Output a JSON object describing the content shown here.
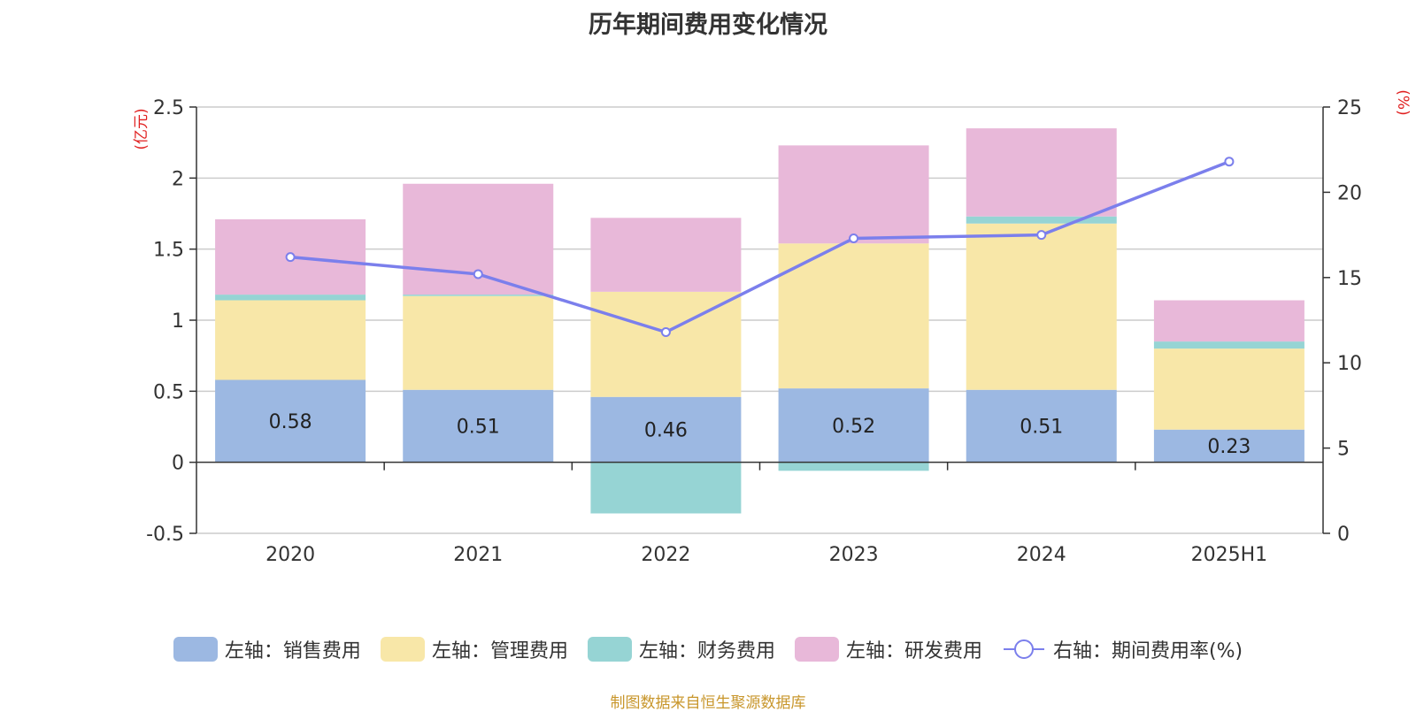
{
  "chart_data": {
    "type": "bar",
    "title": "历年期间费用变化情况",
    "left_axis_unit": "(亿元)",
    "right_axis_unit": "(%)",
    "categories": [
      "2020",
      "2021",
      "2022",
      "2023",
      "2024",
      "2025H1"
    ],
    "stacked": true,
    "left_axis": {
      "min": -0.5,
      "max": 2.5,
      "ticks": [
        "-0.5",
        "0",
        "0.5",
        "1",
        "1.5",
        "2",
        "2.5"
      ]
    },
    "right_axis": {
      "min": 0,
      "max": 25,
      "ticks": [
        "0",
        "5",
        "10",
        "15",
        "20",
        "25"
      ]
    },
    "series": [
      {
        "name": "左轴：销售费用",
        "axis": "left",
        "type": "bar",
        "color": "#9cb8e2",
        "values": [
          0.58,
          0.51,
          0.46,
          0.52,
          0.51,
          0.23
        ],
        "labels": [
          "0.58",
          "0.51",
          "0.46",
          "0.52",
          "0.51",
          "0.23"
        ]
      },
      {
        "name": "左轴：管理费用",
        "axis": "left",
        "type": "bar",
        "color": "#f8e7a8",
        "values": [
          0.56,
          0.66,
          0.74,
          1.02,
          1.17,
          0.57
        ]
      },
      {
        "name": "左轴：财务费用",
        "axis": "left",
        "type": "bar",
        "color": "#96d4d4",
        "values": [
          0.04,
          0.01,
          -0.36,
          -0.06,
          0.05,
          0.05
        ]
      },
      {
        "name": "左轴：研发费用",
        "axis": "left",
        "type": "bar",
        "color": "#e8b8d9",
        "values": [
          0.53,
          0.78,
          0.52,
          0.69,
          0.62,
          0.29
        ]
      },
      {
        "name": "右轴：期间费用率(%)",
        "axis": "right",
        "type": "line",
        "color": "#7b7fec",
        "values": [
          16.2,
          15.2,
          11.8,
          17.3,
          17.5,
          21.8
        ]
      }
    ],
    "grid": true,
    "legend_position": "bottom"
  },
  "source_note": "制图数据来自恒生聚源数据库"
}
